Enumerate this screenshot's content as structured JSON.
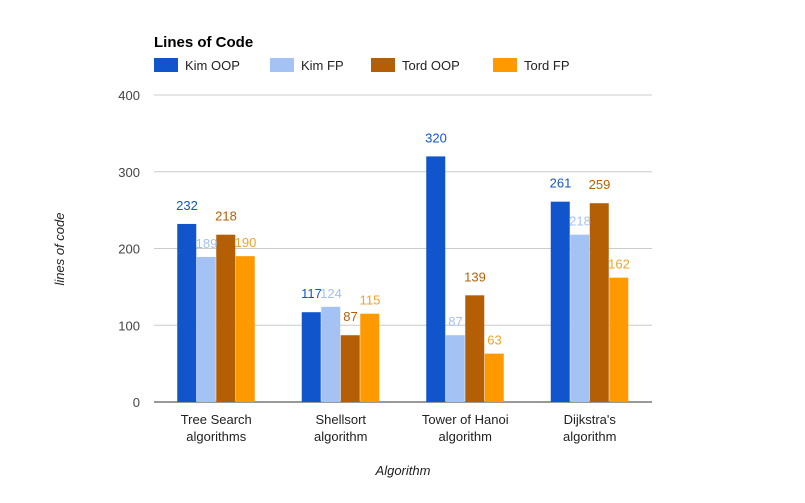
{
  "chart_data": {
    "type": "bar",
    "title": "Lines of Code",
    "xlabel": "Algorithm",
    "ylabel": "lines of code",
    "ylim": [
      0,
      400
    ],
    "yticks": [
      0,
      100,
      200,
      300,
      400
    ],
    "grid": true,
    "legend_position": "top",
    "categories": [
      [
        "Tree Search",
        "algorithms"
      ],
      [
        "Shellsort",
        "algorithm"
      ],
      [
        "Tower of Hanoi",
        "algorithm"
      ],
      [
        "Dijkstra's",
        "algorithm"
      ]
    ],
    "series": [
      {
        "name": "Kim OOP",
        "color": "#1155cc",
        "label_color": "#1155cc",
        "values": [
          232,
          117,
          320,
          261
        ]
      },
      {
        "name": "Kim FP",
        "color": "#a4c2f4",
        "label_color": "#a4c2f4",
        "values": [
          189,
          124,
          87,
          218
        ]
      },
      {
        "name": "Tord OOP",
        "color": "#b45f06",
        "label_color": "#b45f06",
        "values": [
          218,
          87,
          139,
          259
        ]
      },
      {
        "name": "Tord FP",
        "color": "#ff9900",
        "label_color": "#f1a32a",
        "values": [
          190,
          115,
          63,
          162
        ]
      }
    ]
  }
}
